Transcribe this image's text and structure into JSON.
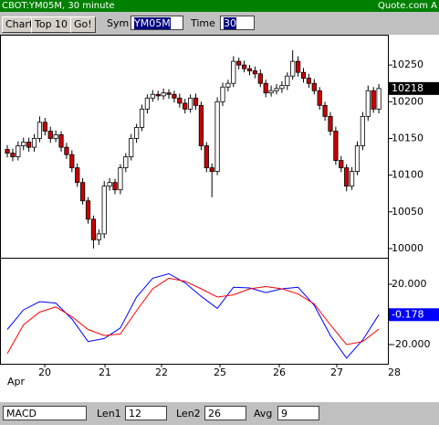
{
  "header": {
    "title": "CBOT:YM05M, 30 minute",
    "source": "Quote.com A"
  },
  "toolbar": {
    "buttons": [
      "Chart",
      "Top 10",
      "Go!"
    ],
    "sym_label": "Sym",
    "sym_value": "YM05M",
    "time_label": "Time",
    "time_value": "30"
  },
  "footer": {
    "indicator": "MACD",
    "len1_label": "Len1",
    "len1": "12",
    "len2_label": "Len2",
    "len2": "26",
    "avg_label": "Avg",
    "avg": "9"
  },
  "chart_data": [
    {
      "type": "candlestick",
      "x": [
        0,
        1,
        2,
        3,
        4,
        5,
        6,
        7,
        8,
        9,
        10,
        11,
        12,
        13,
        14,
        15,
        16,
        17,
        18,
        19,
        20,
        21,
        22,
        23,
        24,
        25,
        26,
        27,
        28,
        29,
        30,
        31,
        32,
        33,
        34,
        35,
        36,
        37,
        38,
        39,
        40,
        41,
        42,
        43,
        44,
        45,
        46,
        47,
        48,
        49,
        50,
        51,
        52,
        53,
        54,
        55,
        56,
        57,
        58,
        59,
        60,
        61,
        62,
        63,
        64,
        65,
        66,
        67,
        68,
        69
      ],
      "open": [
        10135,
        10130,
        10125,
        10140,
        10145,
        10138,
        10150,
        10172,
        10160,
        10150,
        10155,
        10138,
        10128,
        10110,
        10090,
        10065,
        10040,
        10012,
        10020,
        10085,
        10090,
        10080,
        10110,
        10125,
        10150,
        10165,
        10190,
        10205,
        10210,
        10208,
        10212,
        10210,
        10205,
        10198,
        10190,
        10205,
        10195,
        10140,
        10110,
        10105,
        10200,
        10220,
        10225,
        10255,
        10250,
        10245,
        10242,
        10238,
        10225,
        10212,
        10215,
        10218,
        10222,
        10235,
        10255,
        10240,
        10232,
        10225,
        10215,
        10195,
        10180,
        10160,
        10120,
        10110,
        10085,
        10105,
        10140,
        10180,
        10215,
        10190
      ],
      "high": [
        10141,
        10136,
        10146,
        10151,
        10151,
        10156,
        10180,
        10178,
        10166,
        10161,
        10160,
        10144,
        10134,
        10116,
        10096,
        10070,
        10045,
        10026,
        10092,
        10096,
        10095,
        10115,
        10130,
        10156,
        10170,
        10196,
        10210,
        10216,
        10215,
        10218,
        10217,
        10215,
        10211,
        10204,
        10210,
        10211,
        10200,
        10145,
        10116,
        10206,
        10226,
        10230,
        10262,
        10260,
        10256,
        10250,
        10248,
        10244,
        10230,
        10222,
        10224,
        10228,
        10240,
        10270,
        10262,
        10246,
        10238,
        10231,
        10220,
        10200,
        10186,
        10166,
        10126,
        10115,
        10111,
        10146,
        10186,
        10222,
        10220,
        10224
      ],
      "low": [
        10124,
        10119,
        10120,
        10134,
        10132,
        10132,
        10145,
        10154,
        10144,
        10145,
        10132,
        10122,
        10104,
        10084,
        10060,
        10034,
        10000,
        10005,
        10014,
        10079,
        10074,
        10074,
        10104,
        10120,
        10144,
        10160,
        10184,
        10200,
        10202,
        10203,
        10204,
        10199,
        10192,
        10184,
        10185,
        10189,
        10134,
        10104,
        10070,
        10100,
        10194,
        10214,
        10220,
        10244,
        10240,
        10236,
        10232,
        10220,
        10206,
        10207,
        10210,
        10212,
        10216,
        10230,
        10234,
        10226,
        10219,
        10210,
        10189,
        10174,
        10154,
        10114,
        10104,
        10078,
        10080,
        10100,
        10134,
        10174,
        10185,
        10184
      ],
      "close": [
        10130,
        10125,
        10140,
        10145,
        10138,
        10150,
        10172,
        10160,
        10150,
        10155,
        10138,
        10128,
        10110,
        10090,
        10065,
        10040,
        10012,
        10020,
        10085,
        10090,
        10080,
        10110,
        10125,
        10150,
        10165,
        10190,
        10205,
        10210,
        10208,
        10212,
        10210,
        10205,
        10198,
        10190,
        10205,
        10195,
        10140,
        10110,
        10105,
        10200,
        10220,
        10225,
        10255,
        10250,
        10245,
        10242,
        10238,
        10225,
        10212,
        10215,
        10218,
        10222,
        10235,
        10255,
        10240,
        10232,
        10225,
        10215,
        10195,
        10180,
        10160,
        10120,
        10110,
        10085,
        10105,
        10140,
        10180,
        10215,
        10190,
        10218
      ],
      "up_color": "#ffffff",
      "down_color": "#cc0000",
      "xlim": [
        -1.36,
        70.68
      ],
      "ylim": [
        9987.5,
        10291.25
      ],
      "yticks": [
        10000,
        10050,
        10100,
        10150,
        10200,
        10250
      ],
      "last_value": 10218,
      "last_value_color": "#000000"
    },
    {
      "type": "line",
      "x": [
        0,
        3,
        6,
        9,
        12,
        15,
        18,
        21,
        24,
        27,
        30,
        33,
        36,
        39,
        42,
        45,
        48,
        51,
        54,
        57,
        60,
        63,
        66,
        69
      ],
      "series": [
        {
          "color": "#0000ff",
          "values": [
            -10,
            3,
            8.5,
            7.5,
            -3,
            -18,
            -16,
            -9,
            11.5,
            24,
            27,
            21,
            12,
            4,
            18,
            17.6,
            14.5,
            17,
            18,
            6,
            -14,
            -29,
            -17,
            -0.178
          ]
        },
        {
          "color": "#ff0000",
          "values": [
            -26,
            -7,
            1.5,
            5,
            -1.5,
            -10,
            -14,
            -13,
            2.4,
            17,
            24,
            22,
            17,
            11.5,
            13,
            17,
            18.5,
            17,
            13.5,
            7,
            -7,
            -20,
            -18,
            -9.7
          ]
        }
      ],
      "xlim": [
        -1.36,
        70.68
      ],
      "ylim": [
        -32.73,
        37.58
      ],
      "yticks": [
        {
          "value": 20,
          "label": "20.000"
        },
        {
          "value": -20,
          "label": "-20.000"
        }
      ],
      "xticks": [
        {
          "value": 6.95,
          "label": "20"
        },
        {
          "value": 18.14,
          "label": "21"
        },
        {
          "value": 28.64,
          "label": "22"
        },
        {
          "value": 39.49,
          "label": "25"
        },
        {
          "value": 50.51,
          "label": "26"
        },
        {
          "value": 61.19,
          "label": "27"
        },
        {
          "value": 71.86,
          "label": "28"
        }
      ],
      "xlabel": "Apr",
      "last_value": -0.178,
      "last_value_color": "#0000ff"
    }
  ]
}
